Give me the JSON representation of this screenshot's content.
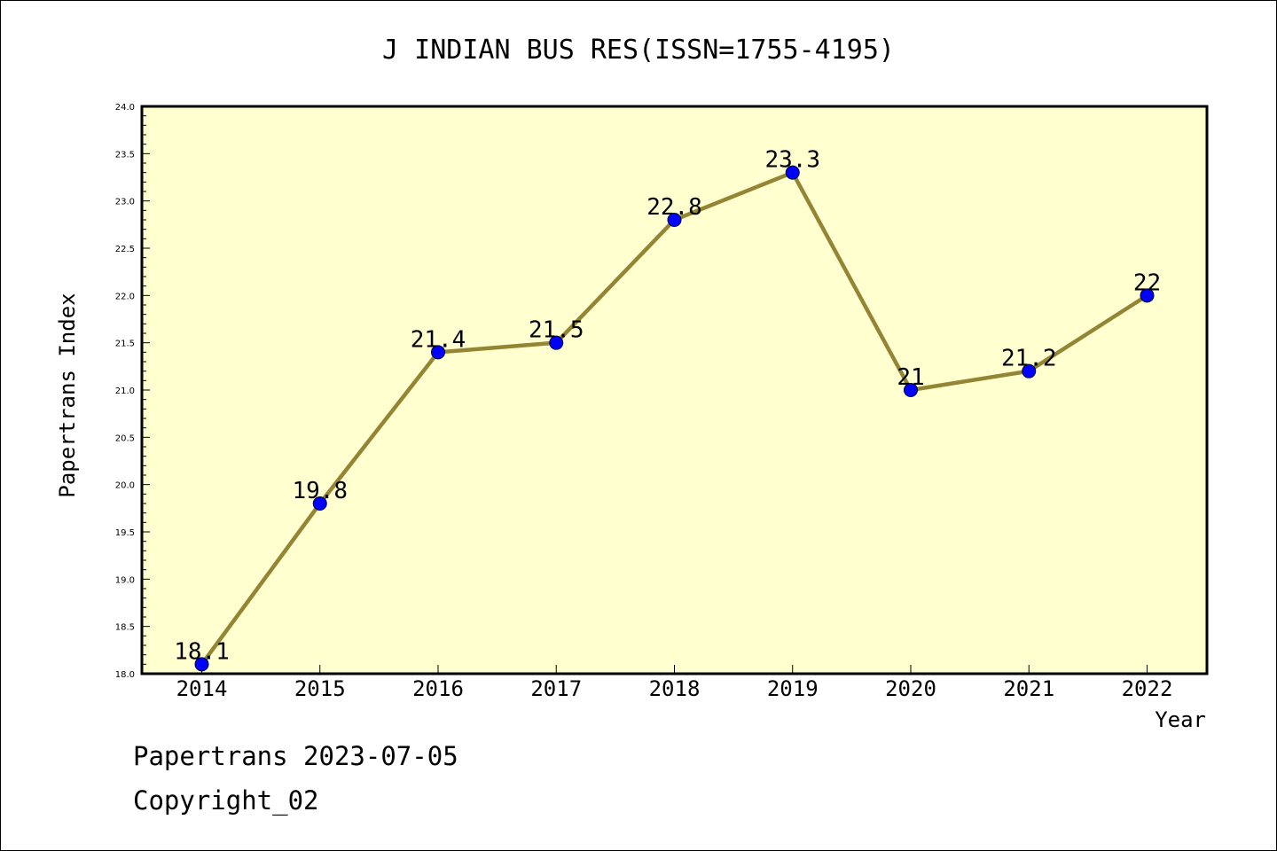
{
  "chart_data": {
    "type": "line",
    "title": "J INDIAN BUS RES(ISSN=1755-4195)",
    "xlabel": "Year",
    "ylabel": "Papertrans Index",
    "categories": [
      "2014",
      "2015",
      "2016",
      "2017",
      "2018",
      "2019",
      "2020",
      "2021",
      "2022"
    ],
    "series": [
      {
        "values": [
          18.1,
          19.8,
          21.4,
          21.5,
          22.8,
          23.3,
          21,
          21.2,
          22
        ],
        "labels": [
          "18.1",
          "19.8",
          "21.4",
          "21.5",
          "22.8",
          "23.3",
          "21",
          "21.2",
          "22"
        ]
      }
    ],
    "ylim": [
      18.0,
      24.0
    ],
    "yticks": [
      "18.0",
      "18.5",
      "19.0",
      "19.5",
      "20.0",
      "20.5",
      "21.0",
      "21.5",
      "22.0",
      "22.5",
      "23.0",
      "23.5",
      "24.0"
    ],
    "grid": false,
    "legend": "none",
    "colors": {
      "plot_background": "#ffffd0",
      "line": "#948535",
      "marker": "#0000ff"
    }
  },
  "footer": {
    "date": "Papertrans 2023-07-05",
    "copyright": "Copyright_02"
  }
}
